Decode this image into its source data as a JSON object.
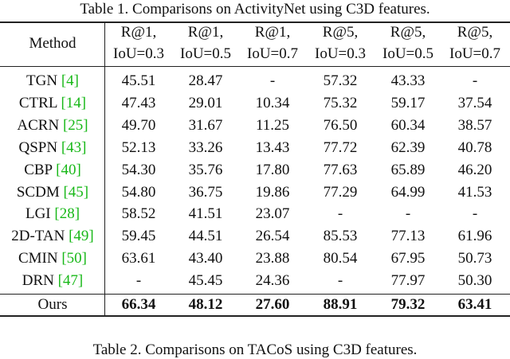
{
  "caption": "Table 1. Comparisons on ActivityNet using C3D features.",
  "header": {
    "method": "Method",
    "columns": [
      {
        "metric": "R@1,",
        "iou": "IoU=0.3"
      },
      {
        "metric": "R@1,",
        "iou": "IoU=0.5"
      },
      {
        "metric": "R@1,",
        "iou": "IoU=0.7"
      },
      {
        "metric": "R@5,",
        "iou": "IoU=0.3"
      },
      {
        "metric": "R@5,",
        "iou": "IoU=0.5"
      },
      {
        "metric": "R@5,",
        "iou": "IoU=0.7"
      }
    ]
  },
  "rows": [
    {
      "name": "TGN",
      "ref": "[4]",
      "values": [
        "45.51",
        "28.47",
        "-",
        "57.32",
        "43.33",
        "-"
      ]
    },
    {
      "name": "CTRL",
      "ref": "[14]",
      "values": [
        "47.43",
        "29.01",
        "10.34",
        "75.32",
        "59.17",
        "37.54"
      ]
    },
    {
      "name": "ACRN",
      "ref": "[25]",
      "values": [
        "49.70",
        "31.67",
        "11.25",
        "76.50",
        "60.34",
        "38.57"
      ]
    },
    {
      "name": "QSPN",
      "ref": "[43]",
      "values": [
        "52.13",
        "33.26",
        "13.43",
        "77.72",
        "62.39",
        "40.78"
      ]
    },
    {
      "name": "CBP",
      "ref": "[40]",
      "values": [
        "54.30",
        "35.76",
        "17.80",
        "77.63",
        "65.89",
        "46.20"
      ]
    },
    {
      "name": "SCDM",
      "ref": "[45]",
      "values": [
        "54.80",
        "36.75",
        "19.86",
        "77.29",
        "64.99",
        "41.53"
      ]
    },
    {
      "name": "LGI",
      "ref": "[28]",
      "values": [
        "58.52",
        "41.51",
        "23.07",
        "-",
        "-",
        "-"
      ]
    },
    {
      "name": "2D-TAN",
      "ref": "[49]",
      "values": [
        "59.45",
        "44.51",
        "26.54",
        "85.53",
        "77.13",
        "61.96"
      ]
    },
    {
      "name": "CMIN",
      "ref": "[50]",
      "values": [
        "63.61",
        "43.40",
        "23.88",
        "80.54",
        "67.95",
        "50.73"
      ]
    },
    {
      "name": "DRN",
      "ref": "[47]",
      "values": [
        "-",
        "45.45",
        "24.36",
        "-",
        "77.97",
        "50.30"
      ]
    }
  ],
  "ours": {
    "name": "Ours",
    "values": [
      "66.34",
      "48.12",
      "27.60",
      "88.91",
      "79.32",
      "63.41"
    ]
  },
  "next_caption": "Table 2. Comparisons on TACoS using C3D features."
}
